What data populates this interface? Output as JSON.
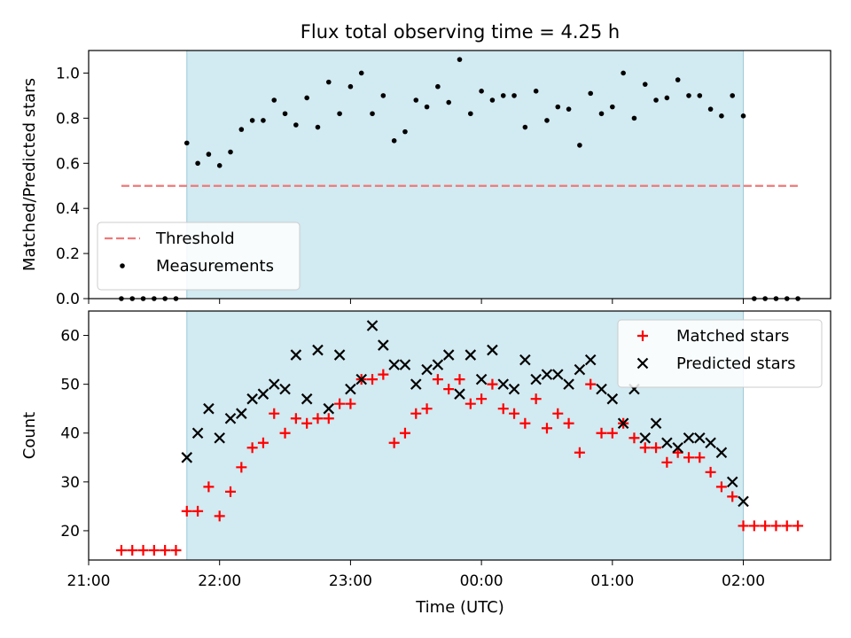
{
  "figure_title": "Flux total observing time = 4.25 h",
  "xlabel": "Time (UTC)",
  "chart_data": [
    {
      "type": "scatter",
      "title": "Flux total observing time = 4.25 h",
      "ylabel": "Matched/Predicted stars",
      "ylim": [
        0,
        1.1
      ],
      "yticks": [
        "0.0",
        "0.2",
        "0.4",
        "0.6",
        "0.8",
        "1.0"
      ],
      "yticks_values": [
        0,
        0.2,
        0.4,
        0.6,
        0.8,
        1.0
      ],
      "legend_position": "lower-left",
      "threshold": {
        "name": "Threshold",
        "value": 0.5,
        "x_start": "21:15",
        "x_end": "02:25",
        "color": "#f07878",
        "style": "dashed"
      },
      "shaded_interval": {
        "start": "21:45",
        "end": "02:00",
        "color": "#add8e6"
      },
      "series": [
        {
          "name": "Measurements",
          "color": "#000000",
          "marker": "dot",
          "points": [
            [
              "21:15",
              0
            ],
            [
              "21:20",
              0
            ],
            [
              "21:25",
              0
            ],
            [
              "21:30",
              0
            ],
            [
              "21:35",
              0
            ],
            [
              "21:40",
              0
            ],
            [
              "21:45",
              0.69
            ],
            [
              "21:50",
              0.6
            ],
            [
              "21:55",
              0.64
            ],
            [
              "22:00",
              0.59
            ],
            [
              "22:05",
              0.65
            ],
            [
              "22:10",
              0.75
            ],
            [
              "22:15",
              0.79
            ],
            [
              "22:20",
              0.79
            ],
            [
              "22:25",
              0.88
            ],
            [
              "22:30",
              0.82
            ],
            [
              "22:35",
              0.77
            ],
            [
              "22:40",
              0.89
            ],
            [
              "22:45",
              0.76
            ],
            [
              "22:50",
              0.96
            ],
            [
              "22:55",
              0.82
            ],
            [
              "23:00",
              0.94
            ],
            [
              "23:05",
              1.0
            ],
            [
              "23:10",
              0.82
            ],
            [
              "23:15",
              0.9
            ],
            [
              "23:20",
              0.7
            ],
            [
              "23:25",
              0.74
            ],
            [
              "23:30",
              0.88
            ],
            [
              "23:35",
              0.85
            ],
            [
              "23:40",
              0.94
            ],
            [
              "23:45",
              0.87
            ],
            [
              "23:50",
              1.06
            ],
            [
              "23:55",
              0.82
            ],
            [
              "00:00",
              0.92
            ],
            [
              "00:05",
              0.88
            ],
            [
              "00:10",
              0.9
            ],
            [
              "00:15",
              0.9
            ],
            [
              "00:20",
              0.76
            ],
            [
              "00:25",
              0.92
            ],
            [
              "00:30",
              0.79
            ],
            [
              "00:35",
              0.85
            ],
            [
              "00:40",
              0.84
            ],
            [
              "00:45",
              0.68
            ],
            [
              "00:50",
              0.91
            ],
            [
              "00:55",
              0.82
            ],
            [
              "01:00",
              0.85
            ],
            [
              "01:05",
              1.0
            ],
            [
              "01:10",
              0.8
            ],
            [
              "01:15",
              0.95
            ],
            [
              "01:20",
              0.88
            ],
            [
              "01:25",
              0.89
            ],
            [
              "01:30",
              0.97
            ],
            [
              "01:35",
              0.9
            ],
            [
              "01:40",
              0.9
            ],
            [
              "01:45",
              0.84
            ],
            [
              "01:50",
              0.81
            ],
            [
              "01:55",
              0.9
            ],
            [
              "02:00",
              0.81
            ],
            [
              "02:05",
              0
            ],
            [
              "02:10",
              0
            ],
            [
              "02:15",
              0
            ],
            [
              "02:20",
              0
            ],
            [
              "02:25",
              0
            ]
          ]
        }
      ]
    },
    {
      "type": "scatter",
      "title": "",
      "ylabel": "Count",
      "ylim": [
        14,
        65
      ],
      "yticks": [
        "20",
        "30",
        "40",
        "50",
        "60"
      ],
      "yticks_values": [
        20,
        30,
        40,
        50,
        60
      ],
      "legend_position": "upper-right",
      "shaded_interval": {
        "start": "21:45",
        "end": "02:00",
        "color": "#add8e6"
      },
      "xlim": [
        "21:00",
        "02:40"
      ],
      "xticks": [
        "21:00",
        "22:00",
        "23:00",
        "00:00",
        "01:00",
        "02:00"
      ],
      "series": [
        {
          "name": "Matched stars",
          "color": "#ff0000",
          "marker": "plus",
          "points": [
            [
              "21:15",
              16
            ],
            [
              "21:20",
              16
            ],
            [
              "21:25",
              16
            ],
            [
              "21:30",
              16
            ],
            [
              "21:35",
              16
            ],
            [
              "21:40",
              16
            ],
            [
              "21:45",
              24
            ],
            [
              "21:50",
              24
            ],
            [
              "21:55",
              29
            ],
            [
              "22:00",
              23
            ],
            [
              "22:05",
              28
            ],
            [
              "22:10",
              33
            ],
            [
              "22:15",
              37
            ],
            [
              "22:20",
              38
            ],
            [
              "22:25",
              44
            ],
            [
              "22:30",
              40
            ],
            [
              "22:35",
              43
            ],
            [
              "22:40",
              42
            ],
            [
              "22:45",
              43
            ],
            [
              "22:50",
              43
            ],
            [
              "22:55",
              46
            ],
            [
              "23:00",
              46
            ],
            [
              "23:05",
              51
            ],
            [
              "23:10",
              51
            ],
            [
              "23:15",
              52
            ],
            [
              "23:20",
              38
            ],
            [
              "23:25",
              40
            ],
            [
              "23:30",
              44
            ],
            [
              "23:35",
              45
            ],
            [
              "23:40",
              51
            ],
            [
              "23:45",
              49
            ],
            [
              "23:50",
              51
            ],
            [
              "23:55",
              46
            ],
            [
              "00:00",
              47
            ],
            [
              "00:05",
              50
            ],
            [
              "00:10",
              45
            ],
            [
              "00:15",
              44
            ],
            [
              "00:20",
              42
            ],
            [
              "00:25",
              47
            ],
            [
              "00:30",
              41
            ],
            [
              "00:35",
              44
            ],
            [
              "00:40",
              42
            ],
            [
              "00:45",
              36
            ],
            [
              "00:50",
              50
            ],
            [
              "00:55",
              40
            ],
            [
              "01:00",
              40
            ],
            [
              "01:05",
              42
            ],
            [
              "01:10",
              39
            ],
            [
              "01:15",
              37
            ],
            [
              "01:20",
              37
            ],
            [
              "01:25",
              34
            ],
            [
              "01:30",
              36
            ],
            [
              "01:35",
              35
            ],
            [
              "01:40",
              35
            ],
            [
              "01:45",
              32
            ],
            [
              "01:50",
              29
            ],
            [
              "01:55",
              27
            ],
            [
              "02:00",
              21
            ],
            [
              "02:05",
              21
            ],
            [
              "02:10",
              21
            ],
            [
              "02:15",
              21
            ],
            [
              "02:20",
              21
            ],
            [
              "02:25",
              21
            ]
          ]
        },
        {
          "name": "Predicted stars",
          "color": "#000000",
          "marker": "x",
          "points": [
            [
              "21:45",
              35
            ],
            [
              "21:50",
              40
            ],
            [
              "21:55",
              45
            ],
            [
              "22:00",
              39
            ],
            [
              "22:05",
              43
            ],
            [
              "22:10",
              44
            ],
            [
              "22:15",
              47
            ],
            [
              "22:20",
              48
            ],
            [
              "22:25",
              50
            ],
            [
              "22:30",
              49
            ],
            [
              "22:35",
              56
            ],
            [
              "22:40",
              47
            ],
            [
              "22:45",
              57
            ],
            [
              "22:50",
              45
            ],
            [
              "22:55",
              56
            ],
            [
              "23:00",
              49
            ],
            [
              "23:05",
              51
            ],
            [
              "23:10",
              62
            ],
            [
              "23:15",
              58
            ],
            [
              "23:20",
              54
            ],
            [
              "23:25",
              54
            ],
            [
              "23:30",
              50
            ],
            [
              "23:35",
              53
            ],
            [
              "23:40",
              54
            ],
            [
              "23:45",
              56
            ],
            [
              "23:50",
              48
            ],
            [
              "23:55",
              56
            ],
            [
              "00:00",
              51
            ],
            [
              "00:05",
              57
            ],
            [
              "00:10",
              50
            ],
            [
              "00:15",
              49
            ],
            [
              "00:20",
              55
            ],
            [
              "00:25",
              51
            ],
            [
              "00:30",
              52
            ],
            [
              "00:35",
              52
            ],
            [
              "00:40",
              50
            ],
            [
              "00:45",
              53
            ],
            [
              "00:50",
              55
            ],
            [
              "00:55",
              49
            ],
            [
              "01:00",
              47
            ],
            [
              "01:05",
              42
            ],
            [
              "01:10",
              49
            ],
            [
              "01:15",
              39
            ],
            [
              "01:20",
              42
            ],
            [
              "01:25",
              38
            ],
            [
              "01:30",
              37
            ],
            [
              "01:35",
              39
            ],
            [
              "01:40",
              39
            ],
            [
              "01:45",
              38
            ],
            [
              "01:50",
              36
            ],
            [
              "01:55",
              30
            ],
            [
              "02:00",
              26
            ]
          ]
        }
      ]
    }
  ]
}
